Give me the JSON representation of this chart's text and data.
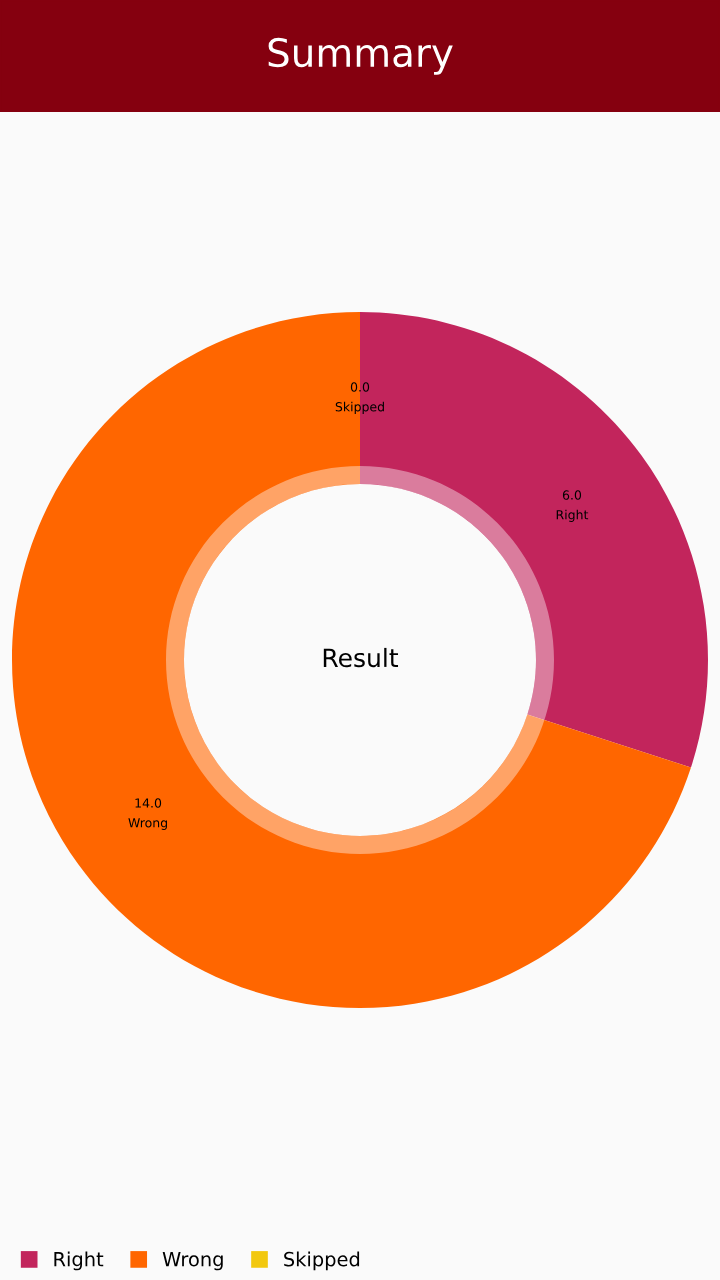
{
  "chart_data": {
    "type": "donut",
    "title": "Summary",
    "categories": [
      "Right",
      "Wrong",
      "Skipped"
    ],
    "values": [
      6,
      14,
      0
    ],
    "value_labels": [
      "6.0",
      "14.0",
      "0.0"
    ],
    "colors": [
      "#c2255c",
      "#ff6600",
      "#f2c80f"
    ],
    "annotations": [
      "Result"
    ],
    "legend": "bottom left"
  }
}
